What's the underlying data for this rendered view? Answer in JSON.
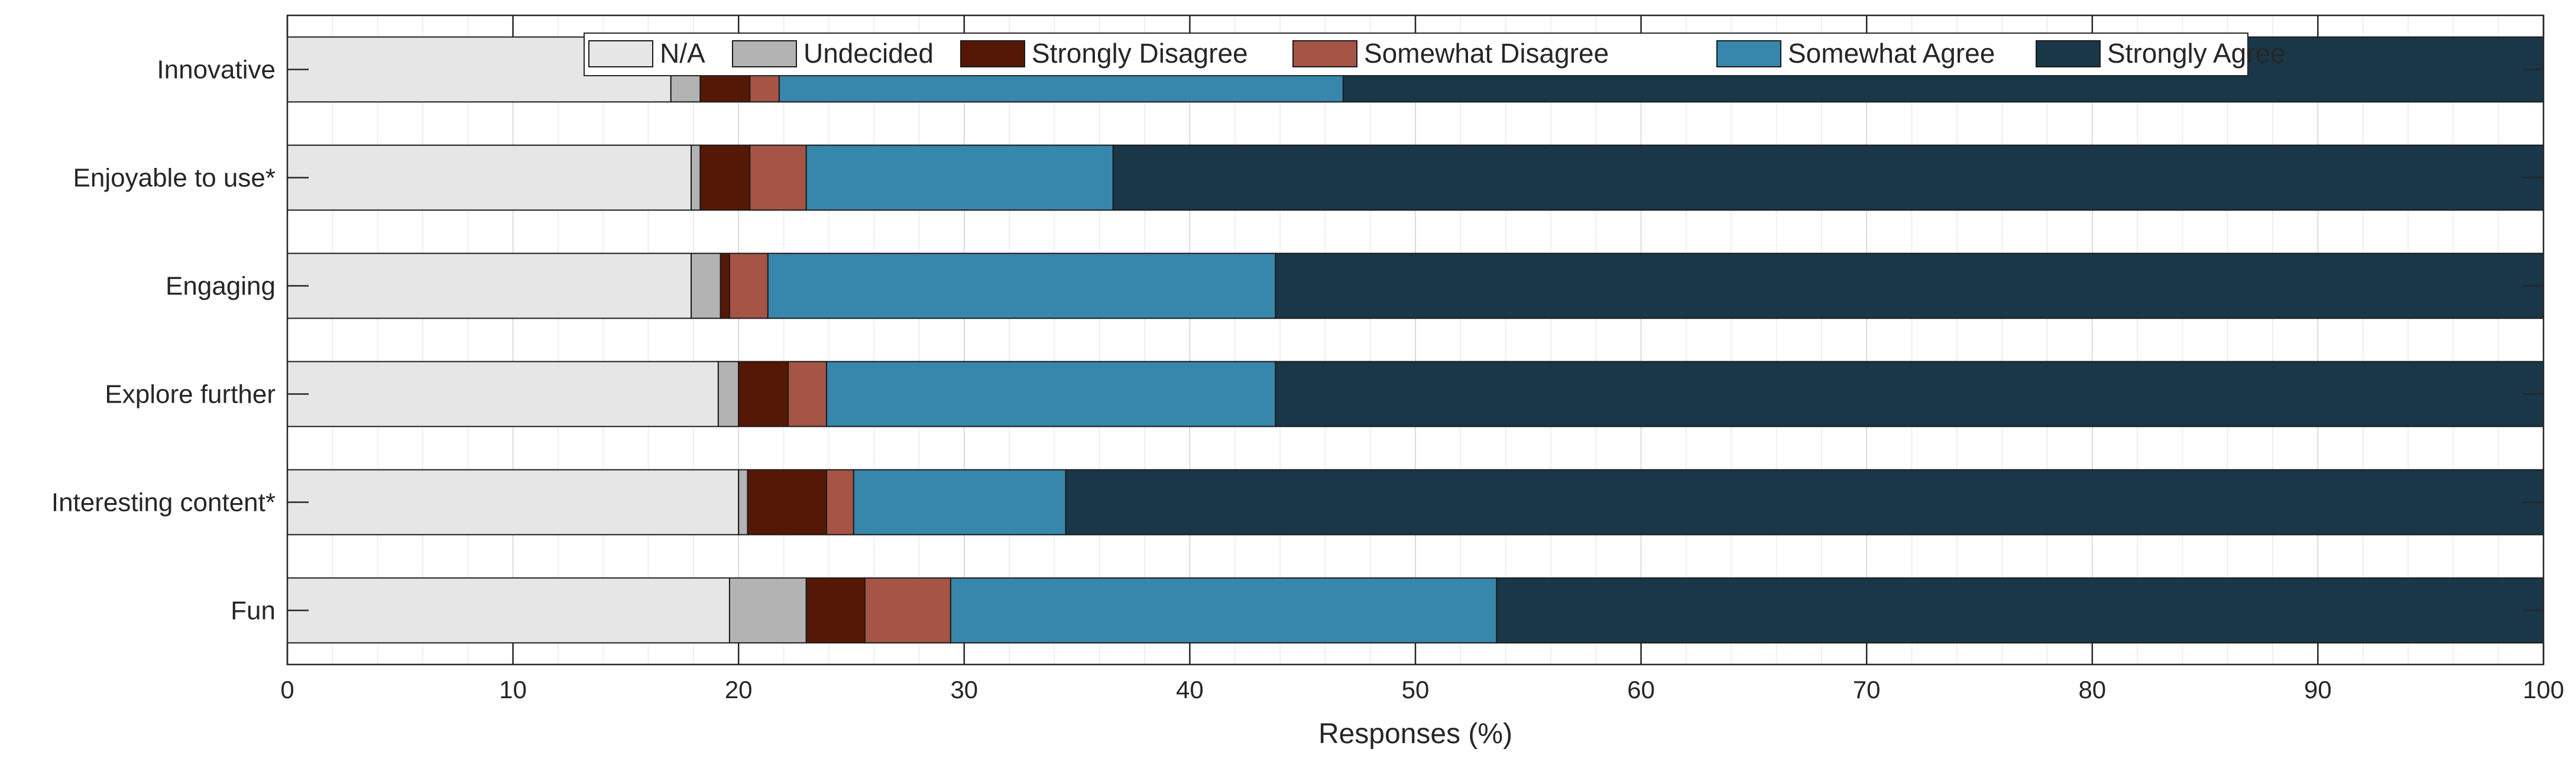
{
  "chart_data": {
    "type": "bar",
    "orientation": "horizontal",
    "stacked": true,
    "title": "",
    "xlabel": "Responses (%)",
    "ylabel": "",
    "xlim": [
      0,
      100
    ],
    "xticks": [
      0,
      10,
      20,
      30,
      40,
      50,
      60,
      70,
      80,
      90,
      100
    ],
    "grid": true,
    "legend_position": "top-center",
    "categories": [
      "Innovative",
      "Enjoyable to use*",
      "Engaging",
      "Explore further",
      "Interesting content*",
      "Fun"
    ],
    "series": [
      {
        "name": "N/A",
        "color": "#e6e6e6",
        "values": [
          17.0,
          17.9,
          17.9,
          19.1,
          20.0,
          19.6
        ]
      },
      {
        "name": "Undecided",
        "color": "#b3b3b3",
        "values": [
          1.3,
          0.4,
          1.3,
          0.9,
          0.4,
          3.4
        ]
      },
      {
        "name": "Strongly Disagree",
        "color": "#561806",
        "values": [
          2.2,
          2.2,
          0.4,
          2.2,
          3.5,
          2.6
        ]
      },
      {
        "name": "Somewhat Disagree",
        "color": "#a55446",
        "values": [
          1.3,
          2.5,
          1.7,
          1.7,
          1.2,
          3.8
        ]
      },
      {
        "name": "Somewhat Agree",
        "color": "#3786ac",
        "values": [
          25.0,
          13.6,
          22.5,
          19.9,
          9.4,
          24.2
        ]
      },
      {
        "name": "Strongly Agree",
        "color": "#1a3649",
        "values": [
          53.2,
          63.4,
          56.2,
          56.2,
          65.5,
          46.4
        ]
      }
    ]
  }
}
